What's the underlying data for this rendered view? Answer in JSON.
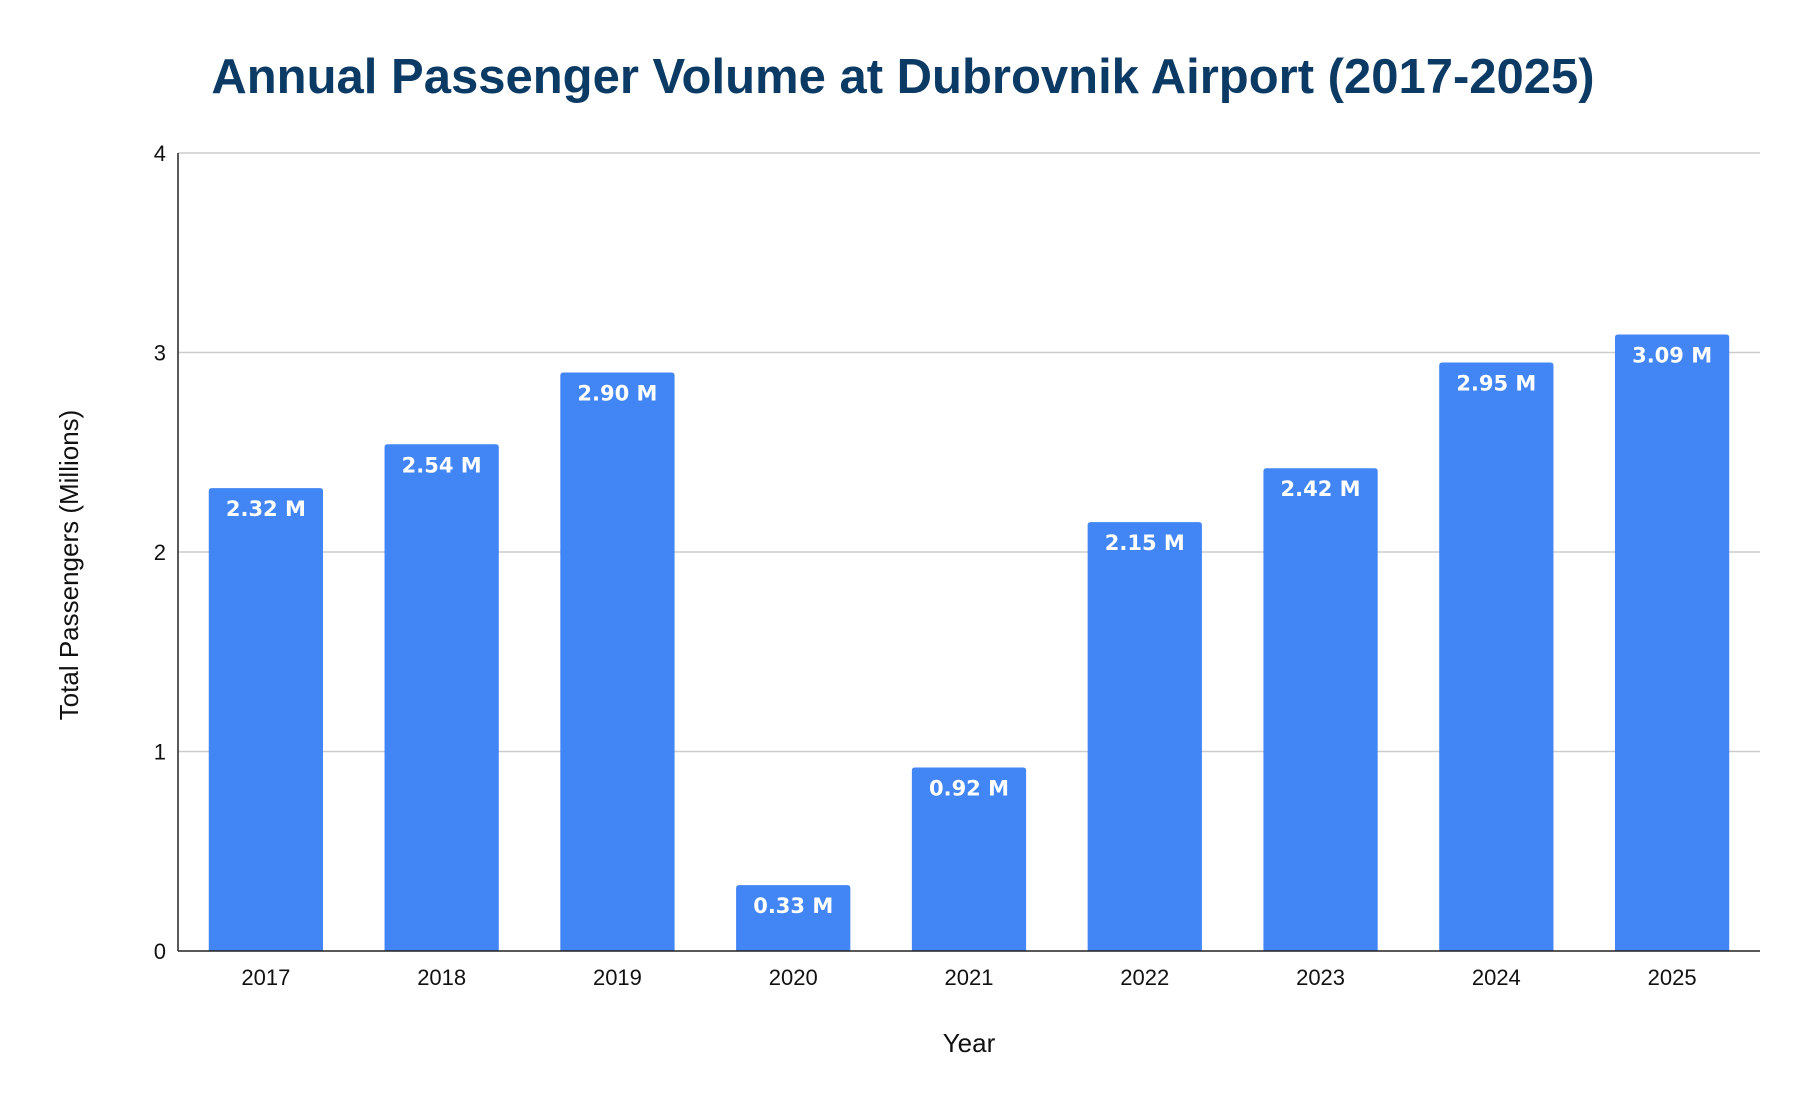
{
  "chart_data": {
    "type": "bar",
    "title": "Annual Passenger Volume at Dubrovnik Airport (2017-2025)",
    "xlabel": "Year",
    "ylabel": "Total Passengers (Millions)",
    "categories": [
      "2017",
      "2018",
      "2019",
      "2020",
      "2021",
      "2022",
      "2023",
      "2024",
      "2025"
    ],
    "values": [
      2.32,
      2.54,
      2.9,
      0.33,
      0.92,
      2.15,
      2.42,
      2.95,
      3.09
    ],
    "data_labels": [
      "2.32 M",
      "2.54 M",
      "2.90 M",
      "0.33 M",
      "0.92 M",
      "2.15 M",
      "2.42 M",
      "2.95 M",
      "3.09 M"
    ],
    "ylim": [
      0,
      4
    ],
    "yticks": [
      "0",
      "1",
      "2",
      "3",
      "4"
    ],
    "grid": true,
    "legend": "none",
    "colors": {
      "bar": "#4285f4",
      "title": "#0b3a64",
      "grid": "#cccccc",
      "axis": "#222222",
      "data_label": "#ffffff"
    }
  }
}
